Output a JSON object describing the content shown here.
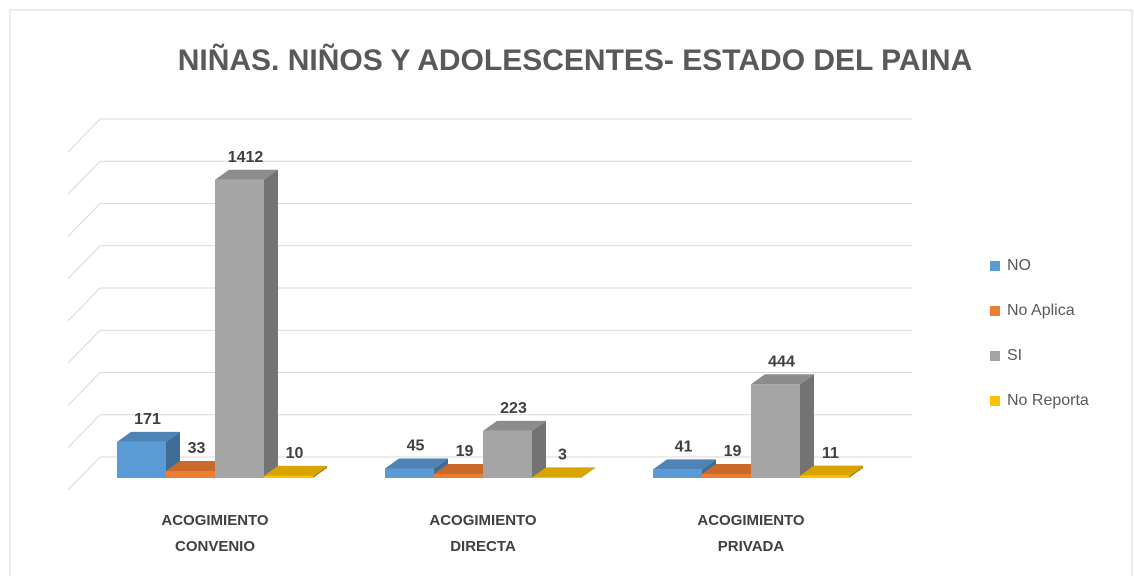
{
  "chart_data": {
    "type": "bar3d",
    "title": "NIÑAS. NIÑOS Y ADOLESCENTES- ESTADO DEL PAINA",
    "categories": [
      "ACOGIMIENTO CONVENIO",
      "ACOGIMIENTO DIRECTA",
      "ACOGIMIENTO PRIVADA"
    ],
    "series": [
      {
        "name": "NO",
        "color": "#5b9bd5",
        "values": [
          171,
          45,
          41
        ]
      },
      {
        "name": "No Aplica",
        "color": "#ed7d31",
        "values": [
          33,
          19,
          19
        ]
      },
      {
        "name": "SI",
        "color": "#a5a5a5",
        "values": [
          1412,
          223,
          444
        ]
      },
      {
        "name": "No Reporta",
        "color": "#ffc000",
        "values": [
          10,
          3,
          11
        ]
      }
    ],
    "ylim": [
      0,
      1600
    ],
    "yticks": [
      0,
      200,
      400,
      600,
      800,
      1000,
      1200,
      1400,
      1600
    ],
    "grid": true,
    "legend": "right"
  }
}
